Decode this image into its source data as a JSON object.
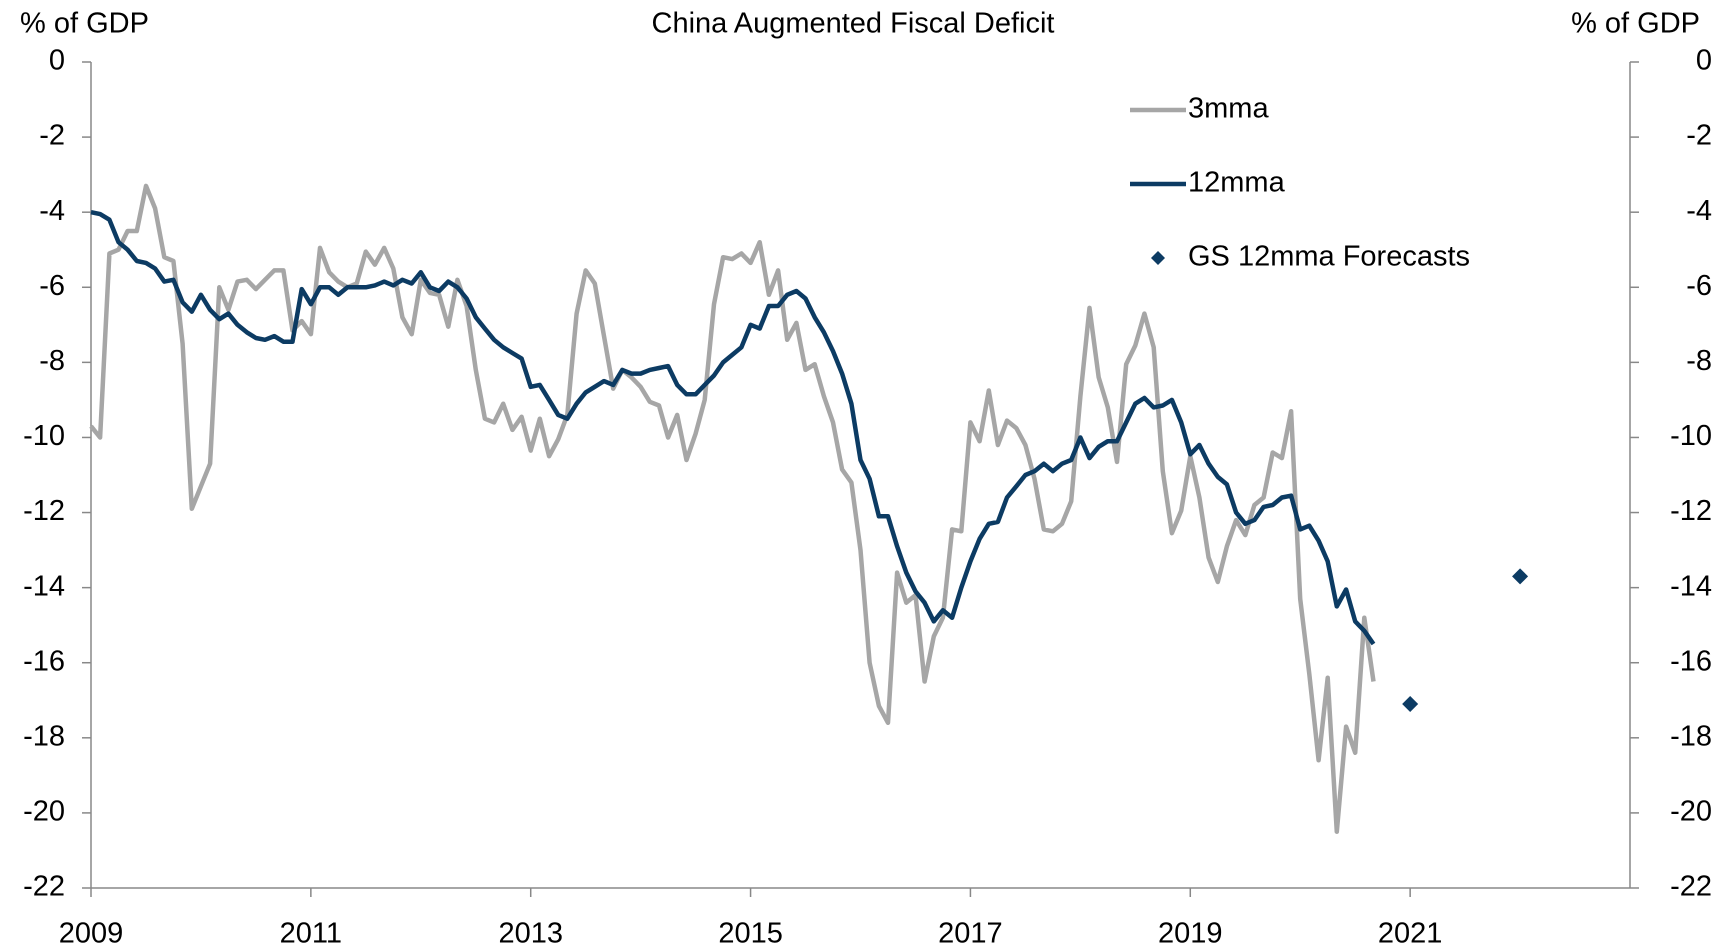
{
  "chart_data": {
    "type": "line",
    "title": "China Augmented  Fiscal  Deficit",
    "y_label": "% of GDP",
    "y2_label": "% of GDP",
    "xlim": [
      2009,
      2023
    ],
    "xticks": [
      2009,
      2011,
      2013,
      2015,
      2017,
      2019,
      2021
    ],
    "ylim": [
      -22,
      0
    ],
    "yticks": [
      0,
      -2,
      -4,
      -6,
      -8,
      -10,
      -12,
      -14,
      -16,
      -18,
      -20,
      -22
    ],
    "y2lim": [
      -22,
      0
    ],
    "y2ticks": [
      0,
      -2,
      -4,
      -6,
      -8,
      -10,
      -12,
      -14,
      -16,
      -18,
      -20,
      -22
    ],
    "legend": "upper right",
    "grid": false,
    "x": [
      2009,
      2009.083,
      2009.167,
      2009.25,
      2009.333,
      2009.417,
      2009.5,
      2009.583,
      2009.667,
      2009.75,
      2009.833,
      2009.917,
      2010,
      2010.083,
      2010.167,
      2010.25,
      2010.333,
      2010.417,
      2010.5,
      2010.583,
      2010.667,
      2010.75,
      2010.833,
      2010.917,
      2011,
      2011.083,
      2011.167,
      2011.25,
      2011.333,
      2011.417,
      2011.5,
      2011.583,
      2011.667,
      2011.75,
      2011.833,
      2011.917,
      2012,
      2012.083,
      2012.167,
      2012.25,
      2012.333,
      2012.417,
      2012.5,
      2012.583,
      2012.667,
      2012.75,
      2012.833,
      2012.917,
      2013,
      2013.083,
      2013.167,
      2013.25,
      2013.333,
      2013.417,
      2013.5,
      2013.583,
      2013.667,
      2013.75,
      2013.833,
      2013.917,
      2014,
      2014.083,
      2014.167,
      2014.25,
      2014.333,
      2014.417,
      2014.5,
      2014.583,
      2014.667,
      2014.75,
      2014.833,
      2014.917,
      2015,
      2015.083,
      2015.167,
      2015.25,
      2015.333,
      2015.417,
      2015.5,
      2015.583,
      2015.667,
      2015.75,
      2015.833,
      2015.917,
      2016,
      2016.083,
      2016.167,
      2016.25,
      2016.333,
      2016.417,
      2016.5,
      2016.583,
      2016.667,
      2016.75,
      2016.833,
      2016.917,
      2017,
      2017.083,
      2017.167,
      2017.25,
      2017.333,
      2017.417,
      2017.5,
      2017.583,
      2017.667,
      2017.75,
      2017.833,
      2017.917,
      2018,
      2018.083,
      2018.167,
      2018.25,
      2018.333,
      2018.417,
      2018.5,
      2018.583,
      2018.667,
      2018.75,
      2018.833,
      2018.917,
      2019,
      2019.083,
      2019.167,
      2019.25,
      2019.333,
      2019.417,
      2019.5,
      2019.583,
      2019.667,
      2019.75,
      2019.833,
      2019.917,
      2020,
      2020.083,
      2020.167,
      2020.25,
      2020.333,
      2020.417,
      2020.5,
      2020.583,
      2020.667
    ],
    "series": [
      {
        "name": "3mma",
        "color": "#a6a6a6",
        "values": [
          -9.7,
          -10.0,
          -5.1,
          -5.0,
          -4.5,
          -4.5,
          -3.3,
          -3.9,
          -5.2,
          -5.3,
          -7.5,
          -11.9,
          -11.3,
          -10.7,
          -6.0,
          -6.6,
          -5.85,
          -5.8,
          -6.05,
          -5.8,
          -5.55,
          -5.55,
          -7.15,
          -6.9,
          -7.25,
          -4.95,
          -5.6,
          -5.85,
          -6.0,
          -5.9,
          -5.05,
          -5.4,
          -4.95,
          -5.5,
          -6.8,
          -7.25,
          -5.8,
          -6.15,
          -6.2,
          -7.05,
          -5.8,
          -6.5,
          -8.2,
          -9.5,
          -9.6,
          -9.1,
          -9.8,
          -9.45,
          -10.35,
          -9.5,
          -10.5,
          -10.05,
          -9.4,
          -6.7,
          -5.55,
          -5.9,
          -7.3,
          -8.7,
          -8.2,
          -8.4,
          -8.65,
          -9.05,
          -9.15,
          -10.0,
          -9.4,
          -10.6,
          -9.9,
          -9.0,
          -6.45,
          -5.2,
          -5.25,
          -5.1,
          -5.35,
          -4.8,
          -6.2,
          -5.55,
          -7.4,
          -6.95,
          -8.2,
          -8.05,
          -8.9,
          -9.6,
          -10.85,
          -11.2,
          -13.0,
          -16.0,
          -17.15,
          -17.6,
          -13.6,
          -14.4,
          -14.2,
          -16.5,
          -15.3,
          -14.8,
          -12.45,
          -12.5,
          -9.6,
          -10.1,
          -8.75,
          -10.2,
          -9.55,
          -9.75,
          -10.2,
          -11.1,
          -12.45,
          -12.5,
          -12.3,
          -11.7,
          -8.9,
          -6.55,
          -8.4,
          -9.2,
          -10.65,
          -8.05,
          -7.55,
          -6.7,
          -7.6,
          -10.9,
          -12.55,
          -11.95,
          -10.5,
          -11.6,
          -13.2,
          -13.85,
          -12.9,
          -12.2,
          -12.6,
          -11.8,
          -11.6,
          -10.4,
          -10.55,
          -9.3,
          -14.3,
          -16.3,
          -18.6,
          -16.4,
          -20.5,
          -17.7,
          -18.4,
          -14.8,
          -16.5
        ]
      },
      {
        "name": "12mma",
        "color": "#0c3b63",
        "values": [
          -4.0,
          -4.05,
          -4.2,
          -4.8,
          -5.0,
          -5.3,
          -5.35,
          -5.5,
          -5.85,
          -5.8,
          -6.4,
          -6.65,
          -6.2,
          -6.6,
          -6.85,
          -6.7,
          -7.0,
          -7.2,
          -7.35,
          -7.4,
          -7.3,
          -7.45,
          -7.45,
          -6.05,
          -6.45,
          -6.0,
          -6.0,
          -6.2,
          -6.0,
          -6.0,
          -6.0,
          -5.95,
          -5.85,
          -5.95,
          -5.8,
          -5.9,
          -5.6,
          -6.0,
          -6.1,
          -5.85,
          -6.0,
          -6.3,
          -6.8,
          -7.1,
          -7.4,
          -7.6,
          -7.75,
          -7.9,
          -8.65,
          -8.6,
          -9.0,
          -9.4,
          -9.5,
          -9.1,
          -8.8,
          -8.65,
          -8.5,
          -8.6,
          -8.2,
          -8.3,
          -8.3,
          -8.2,
          -8.15,
          -8.1,
          -8.6,
          -8.85,
          -8.85,
          -8.6,
          -8.35,
          -8.0,
          -7.8,
          -7.6,
          -7.0,
          -7.1,
          -6.5,
          -6.5,
          -6.2,
          -6.1,
          -6.3,
          -6.8,
          -7.2,
          -7.7,
          -8.3,
          -9.1,
          -10.6,
          -11.1,
          -12.1,
          -12.1,
          -12.9,
          -13.6,
          -14.1,
          -14.4,
          -14.9,
          -14.6,
          -14.8,
          -14.0,
          -13.3,
          -12.7,
          -12.3,
          -12.25,
          -11.6,
          -11.3,
          -11.0,
          -10.9,
          -10.7,
          -10.9,
          -10.7,
          -10.6,
          -10.0,
          -10.55,
          -10.25,
          -10.1,
          -10.1,
          -9.6,
          -9.1,
          -8.95,
          -9.2,
          -9.15,
          -9.0,
          -9.6,
          -10.45,
          -10.2,
          -10.7,
          -11.05,
          -11.25,
          -12.0,
          -12.3,
          -12.2,
          -11.85,
          -11.8,
          -11.6,
          -11.55,
          -12.45,
          -12.35,
          -12.75,
          -13.3,
          -14.5,
          -14.05,
          -14.9,
          -15.15,
          -15.5
        ]
      },
      {
        "name": "GS 12mma Forecasts",
        "color": "#0c3b63",
        "type": "scatter",
        "marker": "diamond",
        "x": [
          2021,
          2022
        ],
        "values": [
          -17.1,
          -13.7
        ]
      }
    ]
  }
}
